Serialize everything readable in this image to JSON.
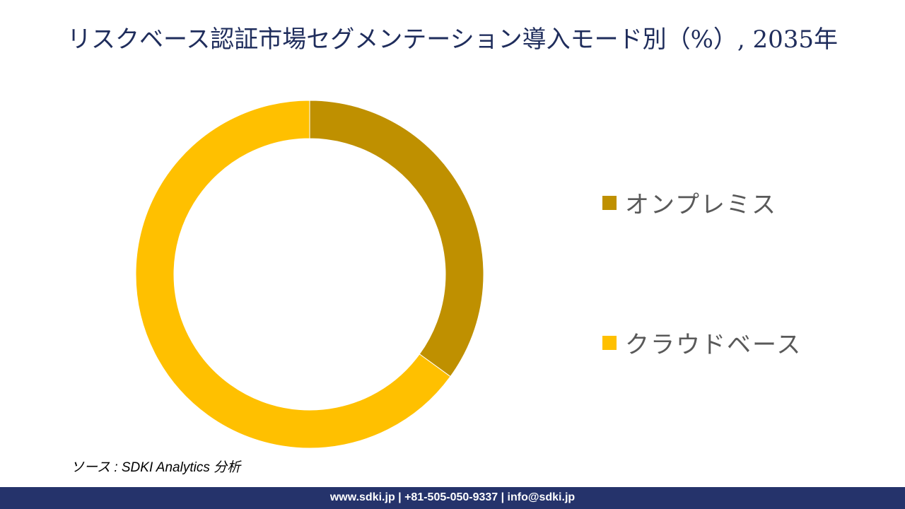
{
  "title": "リスクベース認証市場セグメンテーション導入モード別（%）, 2035年",
  "chart_data": {
    "type": "pie",
    "style": "donut",
    "categories": [
      "オンプレミス",
      "クラウドベース"
    ],
    "values": [
      35,
      65
    ],
    "colors": [
      "#bf9000",
      "#ffc000"
    ],
    "legend_position": "right"
  },
  "source": "ソース : SDKI Analytics 分析",
  "footer": "www.sdki.jp | +81-505-050-9337 | info@sdki.jp"
}
